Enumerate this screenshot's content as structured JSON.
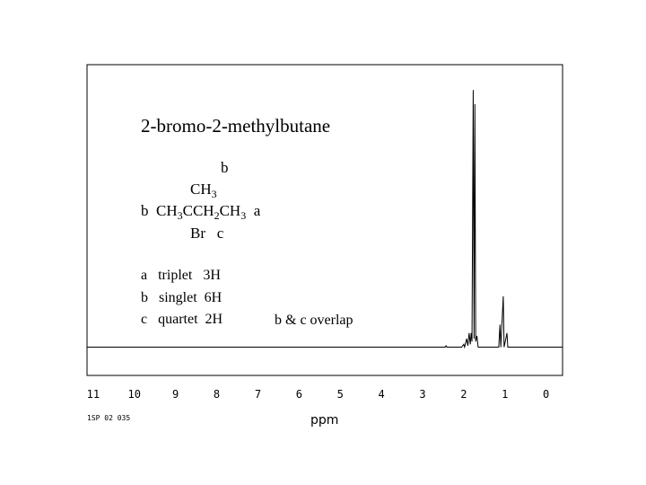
{
  "chart_data": {
    "type": "line",
    "title": "2-bromo-2-methylbutane",
    "structure": [
      [
        {
          "text": "b"
        }
      ],
      [
        {
          "text": "CH"
        },
        {
          "sub": "3"
        }
      ],
      [
        {
          "text": "b  CH"
        },
        {
          "sub": "3"
        },
        {
          "text": "CCH"
        },
        {
          "sub": "2"
        },
        {
          "text": "CH"
        },
        {
          "sub": "3"
        },
        {
          "text": "  a"
        }
      ],
      [
        {
          "text": "Br   c"
        }
      ]
    ],
    "annotations": [
      "a   triplet   3H",
      "b   singlet  6H",
      "c   quartet  2H",
      "b & c overlap"
    ],
    "x_label": "ppm",
    "footnote": "1SP 02 035",
    "xlim": [
      11.15,
      -0.4
    ],
    "ylim": [
      -10,
      100
    ],
    "xticks": [
      11,
      10,
      9,
      8,
      7,
      6,
      5,
      4,
      3,
      2,
      1,
      0
    ],
    "series": [
      {
        "color": "#000000",
        "x": [
          11.15,
          2.45,
          2.43,
          2.41,
          2.05,
          2.0,
          1.98,
          1.93,
          1.9,
          1.87,
          1.84,
          1.82,
          1.8,
          1.77,
          1.75,
          1.73,
          1.71,
          1.68,
          1.65,
          1.15,
          1.12,
          1.1,
          1.04,
          1.02,
          0.95,
          0.93,
          -0.4
        ],
        "values": [
          0,
          0,
          0.5,
          0,
          0,
          1,
          0,
          3,
          0.5,
          5,
          1,
          5,
          2,
          91,
          3,
          86,
          2,
          4,
          0,
          0,
          8,
          0,
          18,
          0,
          5,
          0,
          0
        ]
      }
    ]
  }
}
